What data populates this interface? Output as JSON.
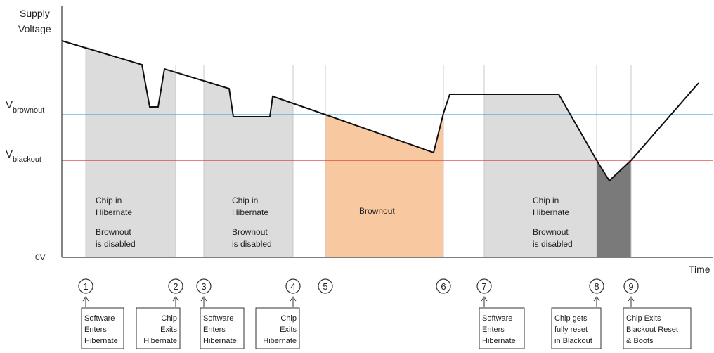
{
  "axes": {
    "y_label_line1": "Supply",
    "y_label_line2": "Voltage",
    "x_label": "Time",
    "zero_label": "0V"
  },
  "thresholds": {
    "brownout": {
      "main": "V",
      "sub": "brownout",
      "color": "#4ea6dc"
    },
    "blackout": {
      "main": "V",
      "sub": "blackout",
      "color": "#e03030"
    }
  },
  "regions": {
    "hibernate_1": {
      "line1": "Chip in",
      "line2": "Hibernate",
      "line3": "Brownout",
      "line4": "is disabled"
    },
    "hibernate_2": {
      "line1": "Chip in",
      "line2": "Hibernate",
      "line3": "Brownout",
      "line4": "is disabled"
    },
    "brownout": {
      "label": "Brownout"
    },
    "hibernate_3": {
      "line1": "Chip in",
      "line2": "Hibernate",
      "line3": "Brownout",
      "line4": "is disabled"
    }
  },
  "colors": {
    "hibernate_fill": "#dcdcdc",
    "brownout_fill": "#f8c9a0",
    "blackout_fill": "#7a7a7a"
  },
  "events": [
    {
      "num": "1",
      "lines": [
        "Software",
        "Enters",
        "Hibernate"
      ]
    },
    {
      "num": "2",
      "lines": [
        "Chip",
        "Exits",
        "Hibernate"
      ]
    },
    {
      "num": "3",
      "lines": [
        "Software",
        "Enters",
        "Hibernate"
      ]
    },
    {
      "num": "4",
      "lines": [
        "Chip",
        "Exits",
        "Hibernate"
      ]
    },
    {
      "num": "5",
      "lines": []
    },
    {
      "num": "6",
      "lines": []
    },
    {
      "num": "7",
      "lines": [
        "Software",
        "Enters",
        "Hibernate"
      ]
    },
    {
      "num": "8",
      "lines": [
        "Chip gets",
        "fully reset",
        "in Blackout"
      ]
    },
    {
      "num": "9",
      "lines": [
        "Chip Exits",
        "Blackout Reset",
        "& Boots"
      ]
    }
  ]
}
